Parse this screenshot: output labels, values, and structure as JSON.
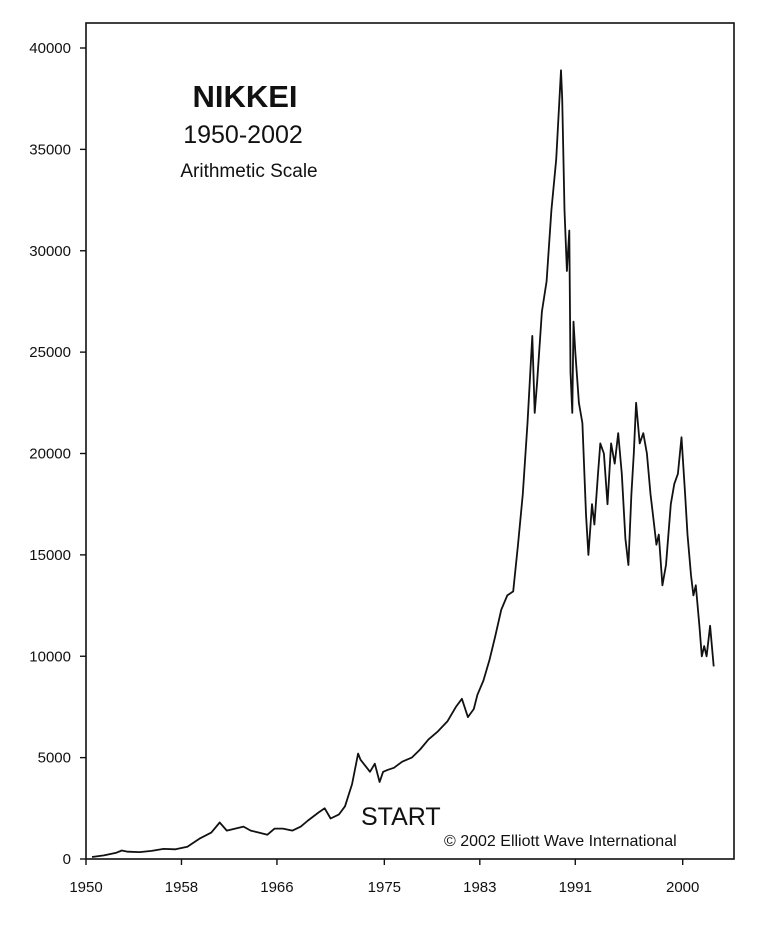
{
  "chart_data": {
    "type": "line",
    "title": "NIKKEI",
    "subtitle": "1950-2002",
    "note": "Arithmetic Scale",
    "annotation": "START",
    "copyright": "© 2002 Elliott Wave International",
    "xlabel": "",
    "ylabel": "",
    "xlim": [
      1950,
      2004.3
    ],
    "ylim": [
      0,
      40000
    ],
    "x_ticks": [
      1950,
      1958,
      1966,
      1975,
      1983,
      1991,
      2000
    ],
    "x_tick_labels": [
      "1950",
      "1958",
      "1966",
      "1975",
      "1983",
      "1991",
      "2000"
    ],
    "y_ticks": [
      0,
      5000,
      10000,
      15000,
      20000,
      25000,
      30000,
      35000,
      40000
    ],
    "y_tick_labels": [
      "0",
      "5000",
      "10000",
      "15000",
      "20000",
      "25000",
      "30000",
      "35000",
      "40000"
    ],
    "grid": false,
    "line_color": "#111111",
    "series": [
      {
        "x": [
          1950.5,
          1951.5,
          1952.5,
          1953.0,
          1953.5,
          1954.5,
          1955.5,
          1956.5,
          1957.5,
          1958.5,
          1959.5,
          1960.5,
          1961.2,
          1961.8,
          1962.5,
          1963.2,
          1963.8,
          1964.5,
          1965.2,
          1965.8,
          1966.5,
          1967.3,
          1968.0,
          1968.6,
          1969.5,
          1970.0,
          1970.5,
          1971.2,
          1971.7,
          1972.3,
          1972.8,
          1973.0,
          1973.4,
          1973.8,
          1974.2,
          1974.6,
          1974.9,
          1975.3,
          1975.8,
          1976.5,
          1977.3,
          1978.0,
          1978.7,
          1979.5,
          1980.3,
          1981.0,
          1981.5,
          1982.0,
          1982.5,
          1982.8,
          1983.3,
          1983.8,
          1984.3,
          1984.8,
          1985.3,
          1985.8,
          1986.2,
          1986.6,
          1987.0,
          1987.4,
          1987.6,
          1987.8,
          1988.2,
          1988.6,
          1989.0,
          1989.4,
          1989.8,
          1989.9,
          1990.1,
          1990.3,
          1990.5,
          1990.6,
          1990.75,
          1990.85,
          1991.0,
          1991.3,
          1991.6,
          1991.9,
          1992.1,
          1992.4,
          1992.6,
          1992.9,
          1993.1,
          1993.4,
          1993.7,
          1994.0,
          1994.3,
          1994.6,
          1994.9,
          1995.2,
          1995.45,
          1995.7,
          1995.9,
          1996.1,
          1996.4,
          1996.7,
          1997.0,
          1997.3,
          1997.5,
          1997.8,
          1998.0,
          1998.3,
          1998.6,
          1998.8,
          1999.0,
          1999.3,
          1999.6,
          1999.9,
          2000.2,
          2000.4,
          2000.7,
          2000.9,
          2001.1,
          2001.4,
          2001.6,
          2001.8,
          2002.0,
          2002.3,
          2002.6
        ],
        "values": [
          100,
          180,
          300,
          420,
          360,
          340,
          400,
          500,
          480,
          600,
          1000,
          1300,
          1800,
          1400,
          1500,
          1600,
          1400,
          1300,
          1200,
          1500,
          1500,
          1400,
          1600,
          1900,
          2300,
          2500,
          2000,
          2200,
          2600,
          3700,
          5200,
          4900,
          4600,
          4300,
          4700,
          3800,
          4300,
          4400,
          4500,
          4800,
          5000,
          5400,
          5900,
          6300,
          6800,
          7500,
          7900,
          7000,
          7400,
          8100,
          8800,
          9800,
          11000,
          12300,
          13000,
          13200,
          15500,
          18000,
          21500,
          25800,
          22000,
          23500,
          27000,
          28500,
          32000,
          34500,
          38900,
          37500,
          32000,
          29000,
          31000,
          24000,
          22000,
          26500,
          25000,
          22500,
          21500,
          17000,
          15000,
          17500,
          16500,
          19000,
          20500,
          20000,
          17500,
          20500,
          19500,
          21000,
          19000,
          15800,
          14500,
          18000,
          20000,
          22500,
          20500,
          21000,
          20000,
          18000,
          17000,
          15500,
          16000,
          13500,
          14500,
          16000,
          17500,
          18500,
          19000,
          20800,
          18000,
          16000,
          14000,
          13000,
          13500,
          11500,
          10000,
          10500,
          10000,
          11500,
          9500
        ]
      }
    ]
  }
}
